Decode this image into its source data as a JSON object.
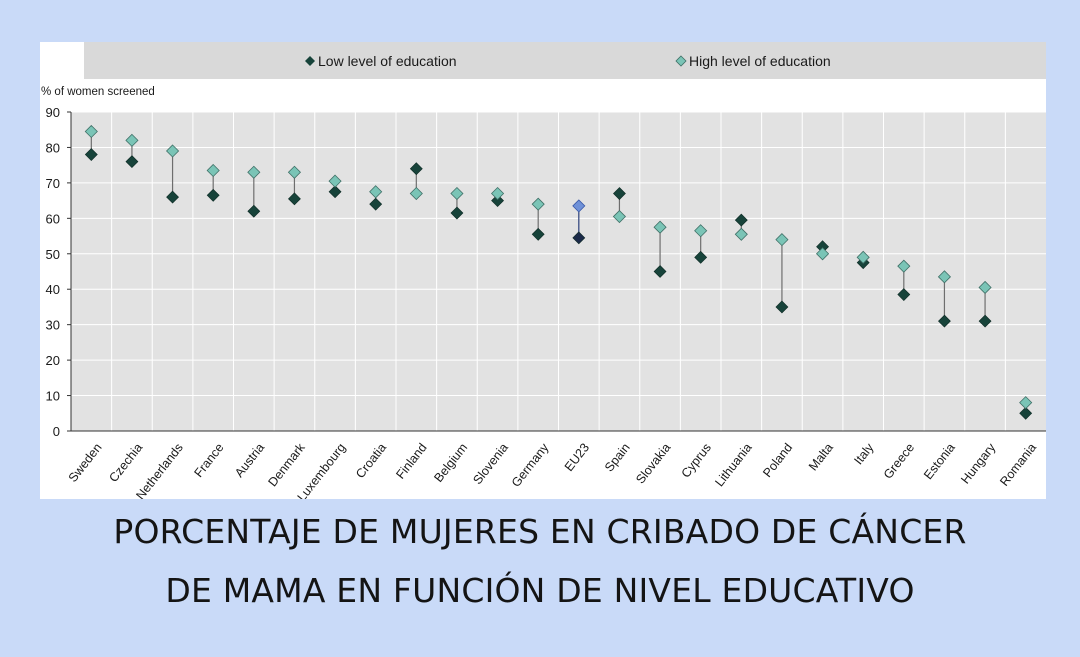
{
  "chart_data": {
    "type": "scatter",
    "ylabel": "% of women screened",
    "ylim": [
      0,
      90
    ],
    "yticks": [
      0,
      10,
      20,
      30,
      40,
      50,
      60,
      70,
      80,
      90
    ],
    "grid": true,
    "legend_position": "top",
    "categories": [
      "Sweden",
      "Czechia",
      "Netherlands",
      "France",
      "Austria",
      "Denmark",
      "Luxembourg",
      "Croatia",
      "Finland",
      "Belgium",
      "Slovenia",
      "Germany",
      "EU23",
      "Spain",
      "Slovakia",
      "Cyprus",
      "Lithuania",
      "Poland",
      "Malta",
      "Italy",
      "Greece",
      "Estonia",
      "Hungary",
      "Romania"
    ],
    "highlight_category": "EU23",
    "series": [
      {
        "name": "Low level of education",
        "values": [
          78,
          76,
          66,
          66.5,
          62,
          65.5,
          67.5,
          64,
          74,
          61.5,
          65,
          55.5,
          54.5,
          67,
          45,
          49,
          59.5,
          35,
          52,
          47.5,
          38.5,
          31,
          31,
          5
        ]
      },
      {
        "name": "High level of education",
        "values": [
          84.5,
          82,
          79,
          73.5,
          73,
          73,
          70.5,
          67.5,
          67,
          67,
          67,
          64,
          63.5,
          60.5,
          57.5,
          56.5,
          55.5,
          54,
          50,
          49,
          46.5,
          43.5,
          40.5,
          8
        ]
      }
    ],
    "colors": {
      "low": "#17433a",
      "high": "#7ac4b6",
      "low_highlight": "#1b2a49",
      "high_highlight": "#6f91d8",
      "plot_bg": "#e2e2e2",
      "connector": "#6e6e6e"
    }
  },
  "caption": {
    "line1": "PORCENTAJE DE MUJERES EN CRIBADO DE CÁNCER",
    "line2": "DE MAMA EN FUNCIÓN DE NIVEL EDUCATIVO"
  }
}
